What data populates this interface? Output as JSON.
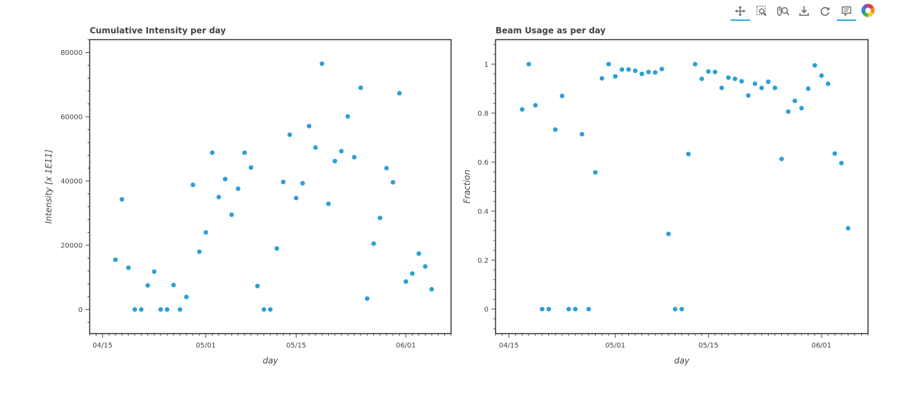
{
  "toolbar": {
    "tools": [
      {
        "name": "pan-tool",
        "icon": "pan-icon",
        "active": true
      },
      {
        "name": "box-zoom-tool",
        "icon": "box-zoom-icon",
        "active": false
      },
      {
        "name": "wheel-zoom-tool",
        "icon": "wheel-zoom-icon",
        "active": false
      },
      {
        "name": "save-tool",
        "icon": "save-icon",
        "active": false
      },
      {
        "name": "reset-tool",
        "icon": "reset-icon",
        "active": false
      },
      {
        "name": "hover-tool",
        "icon": "hover-icon",
        "active": true
      }
    ],
    "logo_icon": "bokeh-logo-icon",
    "accent_color": "#26aae1"
  },
  "chart_data": [
    {
      "type": "scatter",
      "title": "Cumulative Intensity per day",
      "xlabel": "day",
      "ylabel": "Intensity [x 1E11]",
      "marker_color": "#2b9fd6",
      "grid": false,
      "legend": "none",
      "xlim": [
        "2025-04-13",
        "2025-06-08"
      ],
      "ylim": [
        -7500,
        84000
      ],
      "x_ticks": [
        "04/15",
        "05/01",
        "05/15",
        "06/01"
      ],
      "y_ticks": [
        "0",
        "20000",
        "40000",
        "60000",
        "80000"
      ],
      "x_tick_dates": [
        "2025-04-15",
        "2025-05-01",
        "2025-05-15",
        "2025-06-01"
      ],
      "y_tick_values": [
        0,
        20000,
        40000,
        60000,
        80000
      ],
      "points": [
        {
          "x": "2025-04-17",
          "y": 15500
        },
        {
          "x": "2025-04-18",
          "y": 34300
        },
        {
          "x": "2025-04-19",
          "y": 13000
        },
        {
          "x": "2025-04-20",
          "y": 0
        },
        {
          "x": "2025-04-21",
          "y": 0
        },
        {
          "x": "2025-04-22",
          "y": 7500
        },
        {
          "x": "2025-04-23",
          "y": 11800
        },
        {
          "x": "2025-04-24",
          "y": 0
        },
        {
          "x": "2025-04-25",
          "y": 0
        },
        {
          "x": "2025-04-26",
          "y": 7600
        },
        {
          "x": "2025-04-27",
          "y": 0
        },
        {
          "x": "2025-04-28",
          "y": 3900
        },
        {
          "x": "2025-04-29",
          "y": 38800
        },
        {
          "x": "2025-04-30",
          "y": 18000
        },
        {
          "x": "2025-05-01",
          "y": 24000
        },
        {
          "x": "2025-05-02",
          "y": 48800
        },
        {
          "x": "2025-05-03",
          "y": 35000
        },
        {
          "x": "2025-05-04",
          "y": 40600
        },
        {
          "x": "2025-05-05",
          "y": 29500
        },
        {
          "x": "2025-05-06",
          "y": 37600
        },
        {
          "x": "2025-05-07",
          "y": 48800
        },
        {
          "x": "2025-05-08",
          "y": 44200
        },
        {
          "x": "2025-05-09",
          "y": 7300
        },
        {
          "x": "2025-05-10",
          "y": 0
        },
        {
          "x": "2025-05-11",
          "y": 0
        },
        {
          "x": "2025-05-12",
          "y": 19000
        },
        {
          "x": "2025-05-13",
          "y": 39700
        },
        {
          "x": "2025-05-14",
          "y": 54400
        },
        {
          "x": "2025-05-15",
          "y": 34700
        },
        {
          "x": "2025-05-16",
          "y": 39300
        },
        {
          "x": "2025-05-17",
          "y": 57100
        },
        {
          "x": "2025-05-18",
          "y": 50400
        },
        {
          "x": "2025-05-19",
          "y": 76500
        },
        {
          "x": "2025-05-20",
          "y": 32900
        },
        {
          "x": "2025-05-21",
          "y": 46200
        },
        {
          "x": "2025-05-22",
          "y": 49300
        },
        {
          "x": "2025-05-23",
          "y": 60100
        },
        {
          "x": "2025-05-24",
          "y": 47400
        },
        {
          "x": "2025-05-25",
          "y": 69000
        },
        {
          "x": "2025-05-26",
          "y": 3400
        },
        {
          "x": "2025-05-27",
          "y": 20500
        },
        {
          "x": "2025-05-28",
          "y": 28500
        },
        {
          "x": "2025-05-29",
          "y": 44000
        },
        {
          "x": "2025-05-30",
          "y": 39600
        },
        {
          "x": "2025-05-31",
          "y": 67300
        },
        {
          "x": "2025-06-01",
          "y": 8700
        },
        {
          "x": "2025-06-02",
          "y": 11200
        },
        {
          "x": "2025-06-03",
          "y": 17400
        },
        {
          "x": "2025-06-04",
          "y": 13400
        },
        {
          "x": "2025-06-05",
          "y": 6300
        }
      ]
    },
    {
      "type": "scatter",
      "title": "Beam Usage as per day",
      "xlabel": "day",
      "ylabel": "Fraction",
      "marker_color": "#2b9fd6",
      "grid": false,
      "legend": "none",
      "xlim": [
        "2025-04-13",
        "2025-06-08"
      ],
      "ylim": [
        -0.1,
        1.1
      ],
      "x_ticks": [
        "04/15",
        "05/01",
        "05/15",
        "06/01"
      ],
      "y_ticks": [
        "0",
        "0.2",
        "0.4",
        "0.6",
        "0.8",
        "1"
      ],
      "x_tick_dates": [
        "2025-04-15",
        "2025-05-01",
        "2025-05-15",
        "2025-06-01"
      ],
      "y_tick_values": [
        0,
        0.2,
        0.4,
        0.6,
        0.8,
        1
      ],
      "points": [
        {
          "x": "2025-04-17",
          "y": 0.815
        },
        {
          "x": "2025-04-18",
          "y": 1.0
        },
        {
          "x": "2025-04-19",
          "y": 0.832
        },
        {
          "x": "2025-04-20",
          "y": 0
        },
        {
          "x": "2025-04-21",
          "y": 0
        },
        {
          "x": "2025-04-22",
          "y": 0.733
        },
        {
          "x": "2025-04-23",
          "y": 0.87
        },
        {
          "x": "2025-04-24",
          "y": 0
        },
        {
          "x": "2025-04-25",
          "y": 0
        },
        {
          "x": "2025-04-26",
          "y": 0.714
        },
        {
          "x": "2025-04-27",
          "y": 0
        },
        {
          "x": "2025-04-28",
          "y": 0.558
        },
        {
          "x": "2025-04-29",
          "y": 0.942
        },
        {
          "x": "2025-04-30",
          "y": 1.0
        },
        {
          "x": "2025-05-01",
          "y": 0.95
        },
        {
          "x": "2025-05-02",
          "y": 0.978
        },
        {
          "x": "2025-05-03",
          "y": 0.978
        },
        {
          "x": "2025-05-04",
          "y": 0.973
        },
        {
          "x": "2025-05-05",
          "y": 0.96
        },
        {
          "x": "2025-05-06",
          "y": 0.968
        },
        {
          "x": "2025-05-07",
          "y": 0.966
        },
        {
          "x": "2025-05-08",
          "y": 0.98
        },
        {
          "x": "2025-05-09",
          "y": 0.307
        },
        {
          "x": "2025-05-10",
          "y": 0
        },
        {
          "x": "2025-05-11",
          "y": 0
        },
        {
          "x": "2025-05-12",
          "y": 0.633
        },
        {
          "x": "2025-05-13",
          "y": 1.0
        },
        {
          "x": "2025-05-14",
          "y": 0.94
        },
        {
          "x": "2025-05-15",
          "y": 0.97
        },
        {
          "x": "2025-05-16",
          "y": 0.968
        },
        {
          "x": "2025-05-17",
          "y": 0.903
        },
        {
          "x": "2025-05-18",
          "y": 0.945
        },
        {
          "x": "2025-05-19",
          "y": 0.94
        },
        {
          "x": "2025-05-20",
          "y": 0.93
        },
        {
          "x": "2025-05-21",
          "y": 0.872
        },
        {
          "x": "2025-05-22",
          "y": 0.92
        },
        {
          "x": "2025-05-23",
          "y": 0.903
        },
        {
          "x": "2025-05-24",
          "y": 0.928
        },
        {
          "x": "2025-05-25",
          "y": 0.903
        },
        {
          "x": "2025-05-26",
          "y": 0.613
        },
        {
          "x": "2025-05-27",
          "y": 0.806
        },
        {
          "x": "2025-05-28",
          "y": 0.85
        },
        {
          "x": "2025-05-29",
          "y": 0.82
        },
        {
          "x": "2025-05-30",
          "y": 0.9
        },
        {
          "x": "2025-05-31",
          "y": 0.995
        },
        {
          "x": "2025-06-01",
          "y": 0.953
        },
        {
          "x": "2025-06-02",
          "y": 0.92
        },
        {
          "x": "2025-06-03",
          "y": 0.635
        },
        {
          "x": "2025-06-04",
          "y": 0.596
        },
        {
          "x": "2025-06-05",
          "y": 0.33
        }
      ]
    }
  ]
}
